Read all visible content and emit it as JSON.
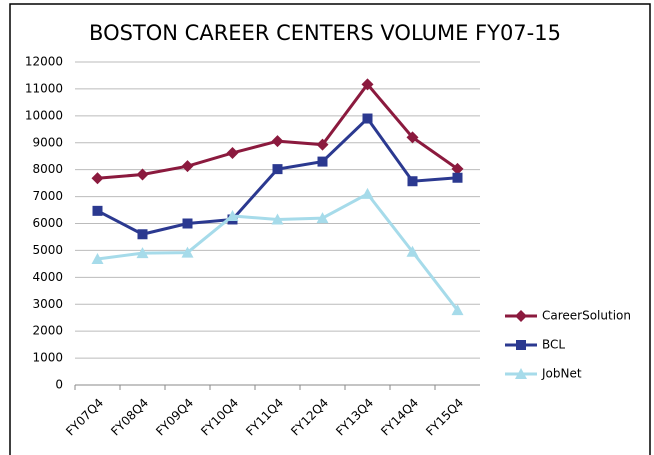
{
  "chart_data": {
    "type": "line",
    "title": "BOSTON CAREER CENTERS VOLUME FY07-15",
    "categories": [
      "FY07Q4",
      "FY08Q4",
      "FY09Q4",
      "FY10Q4",
      "FY11Q4",
      "FY12Q4",
      "FY13Q4",
      "FY14Q4",
      "FY15Q4"
    ],
    "series": [
      {
        "name": "CareerSolution",
        "color": "#8b1a3e",
        "marker": "diamond",
        "values": [
          7680,
          7820,
          8130,
          8620,
          9060,
          8930,
          11170,
          9200,
          8030
        ]
      },
      {
        "name": "BCL",
        "color": "#2b3990",
        "marker": "square",
        "values": [
          6470,
          5600,
          6000,
          6150,
          8020,
          8300,
          9900,
          7570,
          7700
        ]
      },
      {
        "name": "JobNet",
        "color": "#a6dbea",
        "marker": "triangle",
        "values": [
          4680,
          4900,
          4920,
          6280,
          6150,
          6200,
          7100,
          4950,
          2780
        ]
      }
    ],
    "ylim": [
      0,
      12000
    ],
    "yticks": [
      0,
      1000,
      2000,
      3000,
      4000,
      5000,
      6000,
      7000,
      8000,
      9000,
      10000,
      11000,
      12000
    ],
    "grid": true,
    "legend": "right"
  }
}
